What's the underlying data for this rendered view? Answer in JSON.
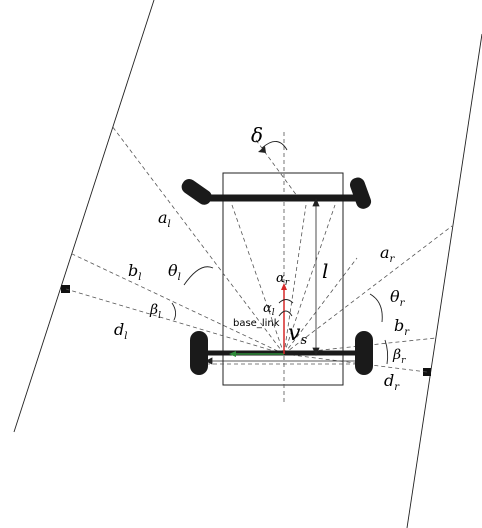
{
  "labels": {
    "delta": "δ",
    "a_l": "a",
    "a_l_sub": "l",
    "b_l": "b",
    "b_l_sub": "l",
    "d_l": "d",
    "d_l_sub": "l",
    "theta_l": "θ",
    "theta_l_sub": "l",
    "beta_l": "β",
    "beta_l_sub": "l",
    "a_r": "a",
    "a_r_sub": "r",
    "b_r": "b",
    "b_r_sub": "r",
    "d_r": "d",
    "d_r_sub": "r",
    "theta_r": "θ",
    "theta_r_sub": "r",
    "beta_r": "β",
    "beta_r_sub": "r",
    "wheelbase": "l",
    "alpha_r": "α",
    "alpha_r_sub": "r",
    "alpha_l": "α",
    "alpha_l_sub": "l",
    "base_link": "base_link",
    "v_s": "v",
    "v_s_sub": "s"
  },
  "colors": {
    "line": "#222222",
    "dashed": "#555555",
    "wheel": "#1a1a1a",
    "x_axis": "#2e8b3a",
    "y_axis": "#d62828"
  }
}
